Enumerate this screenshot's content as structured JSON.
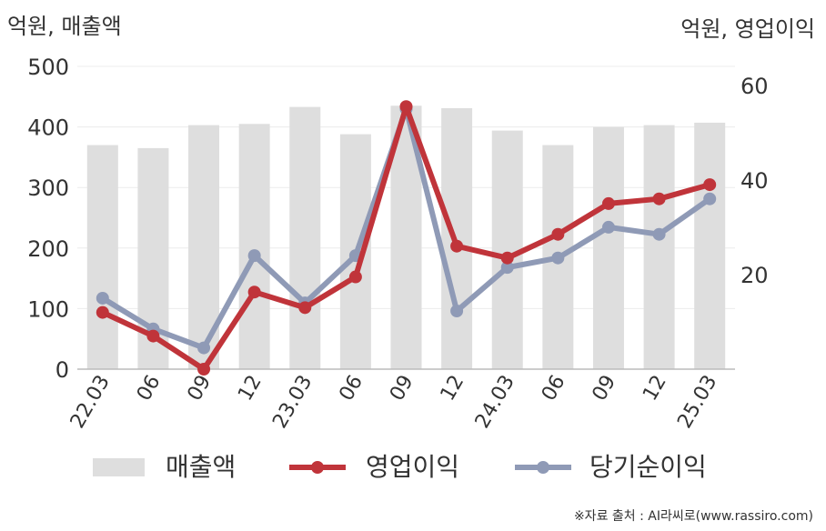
{
  "chart_data": {
    "type": "bar+line",
    "left_axis_label": "억원, 매출액",
    "right_axis_label": "억원, 영업이익",
    "left_ylim": [
      0,
      500
    ],
    "left_ticks": [
      "0",
      "100",
      "200",
      "300",
      "400",
      "500"
    ],
    "right_ylim": [
      0,
      64
    ],
    "right_ticks": [
      "20",
      "40",
      "60"
    ],
    "categories": [
      "22.03",
      "06",
      "09",
      "12",
      "23.03",
      "06",
      "09",
      "12",
      "24.03",
      "06",
      "09",
      "12",
      "25.03"
    ],
    "series": [
      {
        "name": "매출액",
        "type": "bar",
        "axis": "left",
        "color": "#dedede",
        "values": [
          370,
          365,
          403,
          405,
          433,
          388,
          435,
          431,
          394,
          370,
          400,
          403,
          407
        ]
      },
      {
        "name": "영업이익",
        "type": "line",
        "axis": "right",
        "color": "#c0343a",
        "values": [
          12,
          7,
          0,
          16.3,
          13,
          19.5,
          55.5,
          26,
          23.5,
          28.5,
          35,
          36,
          39
        ]
      },
      {
        "name": "당기순이익",
        "type": "line",
        "axis": "right",
        "color": "#8f9ab6",
        "values": [
          15,
          8.5,
          4.5,
          24,
          14,
          24,
          55,
          12.3,
          21.5,
          23.5,
          30,
          28.5,
          36
        ]
      }
    ],
    "grid": true,
    "legend_position": "bottom"
  },
  "source_text": "※자료 출처 : AI라씨로(www.rassiro.com)"
}
